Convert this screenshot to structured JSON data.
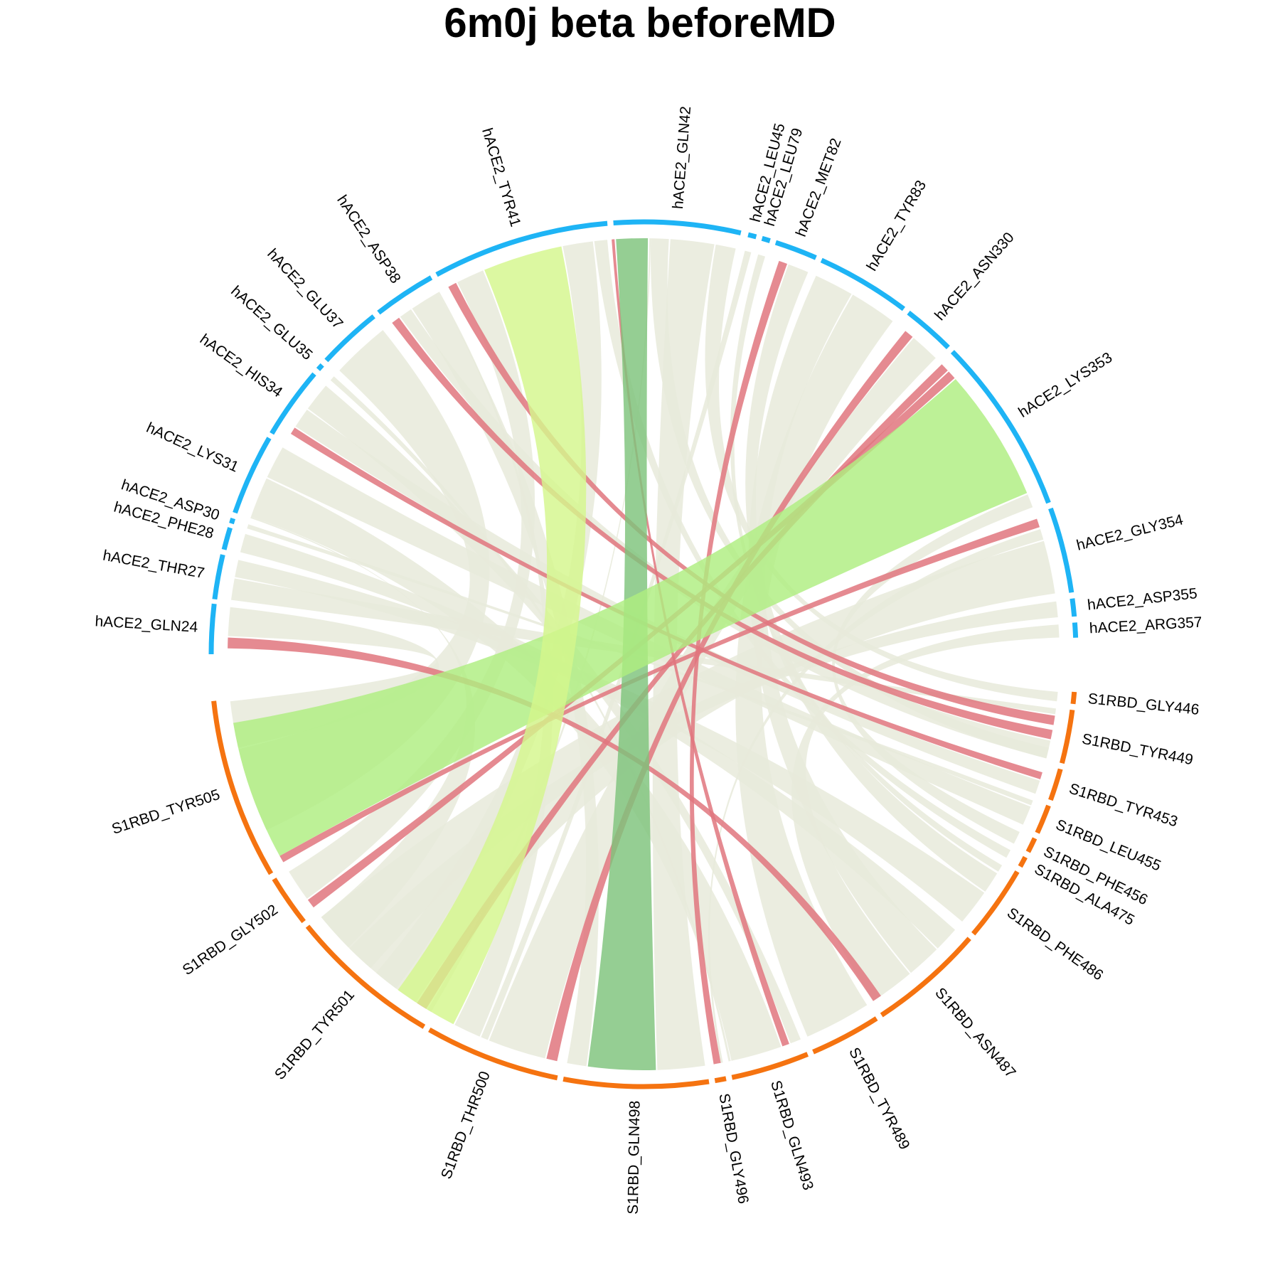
{
  "title": "6m0j beta beforeMD",
  "colors": {
    "hace2_track": "#1EB4F5",
    "s1rbd_track": "#F57310",
    "default_ribbon": "#E8EADA",
    "red": "#E0767E",
    "green_dark": "#7EC37B",
    "green_light": "#D4F68C",
    "green_mid": "#AEEE80"
  },
  "chart_data": {
    "type": "chord",
    "title": "6m0j beta beforeMD",
    "groups": [
      {
        "name": "hACE2",
        "color": "#1EB4F5"
      },
      {
        "name": "S1RBD",
        "color": "#F57310"
      }
    ],
    "sectors": [
      {
        "label": "hACE2_GLN24",
        "group": "hACE2",
        "start": 180.0,
        "end": 186.7
      },
      {
        "label": "hACE2_THR27",
        "group": "hACE2",
        "start": 187.3,
        "end": 193.3
      },
      {
        "label": "hACE2_PHE28",
        "group": "hACE2",
        "start": 194.0,
        "end": 197.0
      },
      {
        "label": "hACE2_ASP30",
        "group": "hACE2",
        "start": 197.6,
        "end": 198.3
      },
      {
        "label": "hACE2_LYS31",
        "group": "hACE2",
        "start": 199.1,
        "end": 210.0
      },
      {
        "label": "hACE2_HIS34",
        "group": "hACE2",
        "start": 210.7,
        "end": 220.4
      },
      {
        "label": "hACE2_GLU35",
        "group": "hACE2",
        "start": 221.2,
        "end": 222.0
      },
      {
        "label": "hACE2_GLU37",
        "group": "hACE2",
        "start": 222.8,
        "end": 231.4
      },
      {
        "label": "hACE2_ASP38",
        "group": "hACE2",
        "start": 232.2,
        "end": 240.6
      },
      {
        "label": "hACE2_TYR41",
        "group": "hACE2",
        "start": 241.4,
        "end": 265.2
      },
      {
        "label": "hACE2_GLN42",
        "group": "hACE2",
        "start": 266.0,
        "end": 283.0
      },
      {
        "label": "hACE2_LEU45",
        "group": "hACE2",
        "start": 284.0,
        "end": 285.1
      },
      {
        "label": "hACE2_LEU79",
        "group": "hACE2",
        "start": 285.9,
        "end": 287.0
      },
      {
        "label": "hACE2_MET82",
        "group": "hACE2",
        "start": 287.8,
        "end": 293.5
      },
      {
        "label": "hACE2_TYR83",
        "group": "hACE2",
        "start": 294.3,
        "end": 307.0
      },
      {
        "label": "hACE2_ASN330",
        "group": "hACE2",
        "start": 307.8,
        "end": 314.8
      },
      {
        "label": "hACE2_LYS353",
        "group": "hACE2",
        "start": 315.6,
        "end": 339.5
      },
      {
        "label": "hACE2_GLY354",
        "group": "hACE2",
        "start": 340.3,
        "end": 351.8
      },
      {
        "label": "hACE2_ASP355",
        "group": "hACE2",
        "start": 352.6,
        "end": 355.0
      },
      {
        "label": "hACE2_ARG357",
        "group": "hACE2",
        "start": 355.8,
        "end": 357.8
      },
      {
        "label": "S1RBD_GLY446",
        "group": "S1RBD",
        "start": 5.0,
        "end": 6.6
      },
      {
        "label": "S1RBD_TYR449",
        "group": "S1RBD",
        "start": 7.4,
        "end": 14.6
      },
      {
        "label": "S1RBD_TYR453",
        "group": "S1RBD",
        "start": 15.4,
        "end": 19.7
      },
      {
        "label": "S1RBD_LEU455",
        "group": "S1RBD",
        "start": 20.5,
        "end": 24.4
      },
      {
        "label": "S1RBD_PHE456",
        "group": "S1RBD",
        "start": 25.2,
        "end": 27.2
      },
      {
        "label": "S1RBD_ALA475",
        "group": "S1RBD",
        "start": 28.0,
        "end": 29.4
      },
      {
        "label": "S1RBD_PHE486",
        "group": "S1RBD",
        "start": 30.2,
        "end": 40.3
      },
      {
        "label": "S1RBD_ASN487",
        "group": "S1RBD",
        "start": 41.1,
        "end": 56.6
      },
      {
        "label": "S1RBD_TYR489",
        "group": "S1RBD",
        "start": 57.4,
        "end": 66.9
      },
      {
        "label": "S1RBD_GLN493",
        "group": "S1RBD",
        "start": 67.7,
        "end": 78.2
      },
      {
        "label": "S1RBD_GLY496",
        "group": "S1RBD",
        "start": 79.0,
        "end": 80.5
      },
      {
        "label": "S1RBD_GLN498",
        "group": "S1RBD",
        "start": 81.3,
        "end": 100.7
      },
      {
        "label": "S1RBD_THR500",
        "group": "S1RBD",
        "start": 101.5,
        "end": 119.7
      },
      {
        "label": "S1RBD_TYR501",
        "group": "S1RBD",
        "start": 120.5,
        "end": 141.0
      },
      {
        "label": "S1RBD_GLY502",
        "group": "S1RBD",
        "start": 141.8,
        "end": 148.7
      },
      {
        "label": "S1RBD_TYR505",
        "group": "S1RBD",
        "start": 149.5,
        "end": 173.8
      }
    ],
    "links": [
      {
        "from": "hACE2_GLN42",
        "to": "S1RBD_GLN498",
        "a": [
          266.2,
          270.6
        ],
        "b": [
          88.3,
          97.7
        ],
        "color": "green_dark"
      },
      {
        "from": "hACE2_LYS353",
        "to": "S1RBD_TYR505",
        "a": [
          318.6,
          337.2
        ],
        "b": [
          151.0,
          170.5
        ],
        "color": "green_mid"
      },
      {
        "from": "hACE2_TYR41",
        "to": "S1RBD_THR500",
        "a": [
          247.5,
          258.6
        ],
        "b": [
          117.2,
          126.2
        ],
        "color": "green_light"
      },
      {
        "from": "hACE2_GLN24",
        "to": "S1RBD_ASN487",
        "a": [
          180.8,
          182.3
        ],
        "b": [
          55.2,
          56.5
        ],
        "color": "red"
      },
      {
        "from": "hACE2_TYR41",
        "to": "S1RBD_TYR449",
        "a": [
          242.0,
          243.2
        ],
        "b": [
          8.5,
          9.8
        ],
        "color": "red"
      },
      {
        "from": "hACE2_ASP38",
        "to": "S1RBD_TYR449",
        "a": [
          232.8,
          234.0
        ],
        "b": [
          10.5,
          11.8
        ],
        "color": "red"
      },
      {
        "from": "hACE2_HIS34",
        "to": "S1RBD_TYR453",
        "a": [
          212.0,
          213.0
        ],
        "b": [
          16.5,
          17.5
        ],
        "color": "red"
      },
      {
        "from": "hACE2_GLN42",
        "to": "S1RBD_GLN493",
        "a": [
          265.6,
          266.0
        ],
        "b": [
          69.5,
          70.5
        ],
        "color": "red"
      },
      {
        "from": "hACE2_MET82",
        "to": "S1RBD_GLY496",
        "a": [
          289.0,
          290.2
        ],
        "b": [
          79.3,
          80.3
        ],
        "color": "red"
      },
      {
        "from": "hACE2_ASN330",
        "to": "S1RBD_THR500",
        "a": [
          309.0,
          310.3
        ],
        "b": [
          102.0,
          103.5
        ],
        "color": "red"
      },
      {
        "from": "hACE2_LYS353",
        "to": "S1RBD_TYR501",
        "a": [
          315.8,
          317.0
        ],
        "b": [
          121.5,
          123.0
        ],
        "color": "red"
      },
      {
        "from": "hACE2_LYS353",
        "to": "S1RBD_GLY502",
        "a": [
          317.2,
          318.4
        ],
        "b": [
          142.5,
          143.8
        ],
        "color": "red"
      },
      {
        "from": "hACE2_GLY354",
        "to": "S1RBD_TYR505",
        "a": [
          341.0,
          342.2
        ],
        "b": [
          150.0,
          151.0
        ],
        "color": "red"
      },
      {
        "from": "hACE2_GLN24",
        "to": "S1RBD_TYR505",
        "a": [
          182.5,
          186.5
        ],
        "b": [
          167.0,
          173.5
        ]
      },
      {
        "from": "hACE2_THR27",
        "to": "S1RBD_TYR449",
        "a": [
          187.5,
          190.5
        ],
        "b": [
          7.5,
          8.3
        ]
      },
      {
        "from": "hACE2_THR27",
        "to": "S1RBD_PHE486",
        "a": [
          190.7,
          193.1
        ],
        "b": [
          35.0,
          40.0
        ]
      },
      {
        "from": "hACE2_PHE28",
        "to": "S1RBD_ASN487",
        "a": [
          194.2,
          196.8
        ],
        "b": [
          41.5,
          45.0
        ]
      },
      {
        "from": "hACE2_ASP30",
        "to": "S1RBD_LEU455",
        "a": [
          197.6,
          198.2
        ],
        "b": [
          20.6,
          21.3
        ]
      },
      {
        "from": "hACE2_LYS31",
        "to": "S1RBD_GLN493",
        "a": [
          199.3,
          205.0
        ],
        "b": [
          70.7,
          77.8
        ]
      },
      {
        "from": "hACE2_LYS31",
        "to": "S1RBD_LEU455",
        "a": [
          205.2,
          209.8
        ],
        "b": [
          21.5,
          24.2
        ]
      },
      {
        "from": "hACE2_HIS34",
        "to": "S1RBD_TYR453",
        "a": [
          213.2,
          216.0
        ],
        "b": [
          17.7,
          19.6
        ]
      },
      {
        "from": "hACE2_HIS34",
        "to": "S1RBD_GLN493",
        "a": [
          216.2,
          220.2
        ],
        "b": [
          67.8,
          69.3
        ]
      },
      {
        "from": "hACE2_GLU35",
        "to": "S1RBD_GLN493",
        "a": [
          221.2,
          221.9
        ],
        "b": [
          77.9,
          78.2
        ]
      },
      {
        "from": "hACE2_GLU37",
        "to": "S1RBD_TYR505",
        "a": [
          223.0,
          231.2
        ],
        "b": [
          155.0,
          166.8
        ]
      },
      {
        "from": "hACE2_ASP38",
        "to": "S1RBD_TYR449",
        "a": [
          234.2,
          236.0
        ],
        "b": [
          12.0,
          14.5
        ]
      },
      {
        "from": "hACE2_ASP38",
        "to": "S1RBD_GLN498",
        "a": [
          236.2,
          240.4
        ],
        "b": [
          97.9,
          100.6
        ]
      },
      {
        "from": "hACE2_TYR41",
        "to": "S1RBD_THR500",
        "a": [
          258.8,
          263.0
        ],
        "b": [
          126.5,
          130.0
        ]
      },
      {
        "from": "hACE2_GLN42",
        "to": "S1RBD_TYR449",
        "a": [
          271.0,
          273.5
        ],
        "b": [
          13.0,
          14.5
        ]
      },
      {
        "from": "hACE2_GLN42",
        "to": "S1RBD_GLY446",
        "a": [
          280.0,
          282.8
        ],
        "b": [
          5.2,
          6.5
        ]
      },
      {
        "from": "hACE2_LEU45",
        "to": "S1RBD_THR500",
        "a": [
          284.1,
          285.0
        ],
        "b": [
          112.0,
          113.0
        ]
      },
      {
        "from": "hACE2_LEU79",
        "to": "S1RBD_PHE486",
        "a": [
          286.0,
          287.0
        ],
        "b": [
          30.5,
          31.5
        ]
      },
      {
        "from": "hACE2_MET82",
        "to": "S1RBD_PHE486",
        "a": [
          290.4,
          293.3
        ],
        "b": [
          31.8,
          34.8
        ]
      },
      {
        "from": "hACE2_TYR83",
        "to": "S1RBD_ASN487",
        "a": [
          294.5,
          300.0
        ],
        "b": [
          45.2,
          50.0
        ]
      },
      {
        "from": "hACE2_TYR83",
        "to": "S1RBD_TYR489",
        "a": [
          300.2,
          306.8
        ],
        "b": [
          57.5,
          66.8
        ]
      },
      {
        "from": "hACE2_ASN330",
        "to": "S1RBD_THR500",
        "a": [
          310.5,
          314.6
        ],
        "b": [
          103.7,
          111.8
        ]
      },
      {
        "from": "hACE2_GLY354",
        "to": "S1RBD_GLY496",
        "a": [
          342.5,
          344.0
        ],
        "b": [
          79.0,
          79.3
        ]
      },
      {
        "from": "hACE2_GLY354",
        "to": "S1RBD_TYR501",
        "a": [
          344.2,
          351.6
        ],
        "b": [
          123.2,
          140.8
        ]
      },
      {
        "from": "hACE2_ASP355",
        "to": "S1RBD_TYR501",
        "a": [
          352.7,
          354.9
        ],
        "b": [
          131.0,
          135.0
        ]
      },
      {
        "from": "hACE2_ARG357",
        "to": "S1RBD_ASN487",
        "a": [
          355.9,
          357.7
        ],
        "b": [
          50.2,
          56.4
        ]
      },
      {
        "from": "hACE2_LYS353",
        "to": "S1RBD_PHE456",
        "a": [
          337.4,
          339.3
        ],
        "b": [
          25.3,
          27.1
        ]
      },
      {
        "from": "hACE2_TYR41",
        "to": "S1RBD_ALA475",
        "a": [
          263.2,
          265.0
        ],
        "b": [
          28.1,
          29.3
        ]
      },
      {
        "from": "hACE2_GLN42",
        "to": "S1RBD_GLN498",
        "a": [
          273.7,
          279.8
        ],
        "b": [
          81.5,
          88.1
        ]
      },
      {
        "from": "hACE2_TYR41",
        "to": "S1RBD_GLY502",
        "a": [
          243.4,
          247.3
        ],
        "b": [
          144.0,
          148.5
        ]
      },
      {
        "from": "hACE2_LYS31",
        "to": "S1RBD_TYR501",
        "a": [
          199.1,
          199.3
        ],
        "b": [
          135.2,
          140.8
        ]
      },
      {
        "from": "hACE2_ASP38",
        "to": "S1RBD_THR500",
        "a": [
          240.4,
          240.6
        ],
        "b": [
          113.2,
          117.0
        ]
      },
      {
        "from": "hACE2_GLN42",
        "to": "S1RBD_TYR501",
        "a": [
          270.8,
          271.0
        ],
        "b": [
          120.7,
          121.3
        ]
      }
    ]
  }
}
